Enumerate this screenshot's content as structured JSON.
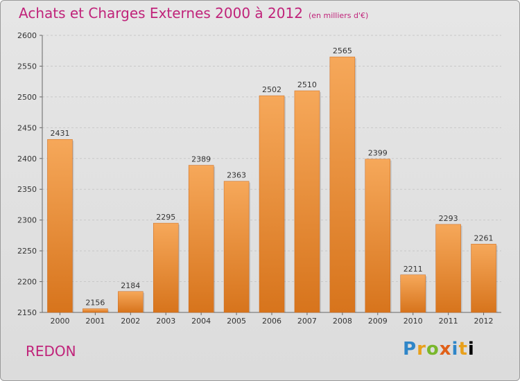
{
  "header": {
    "title": "Achats et Charges Externes 2000 à 2012",
    "subtitle": "(en milliers d'€)"
  },
  "place_name": "REDON",
  "logo": {
    "text": "Proxiti"
  },
  "colors": {
    "title": "#c0237a",
    "bar_top": "#f6a85a",
    "bar_bottom": "#d7741c"
  },
  "chart_data": {
    "type": "bar",
    "categories": [
      "2000",
      "2001",
      "2002",
      "2003",
      "2004",
      "2005",
      "2006",
      "2007",
      "2008",
      "2009",
      "2010",
      "2011",
      "2012"
    ],
    "values": [
      2431,
      2156,
      2184,
      2295,
      2389,
      2363,
      2502,
      2510,
      2565,
      2399,
      2211,
      2293,
      2261
    ],
    "ylim": [
      2150,
      2600
    ],
    "yticks": [
      2150,
      2200,
      2250,
      2300,
      2350,
      2400,
      2450,
      2500,
      2550,
      2600
    ],
    "grid": true,
    "title": "Achats et Charges Externes 2000 à 2012",
    "xlabel": "",
    "ylabel": ""
  }
}
